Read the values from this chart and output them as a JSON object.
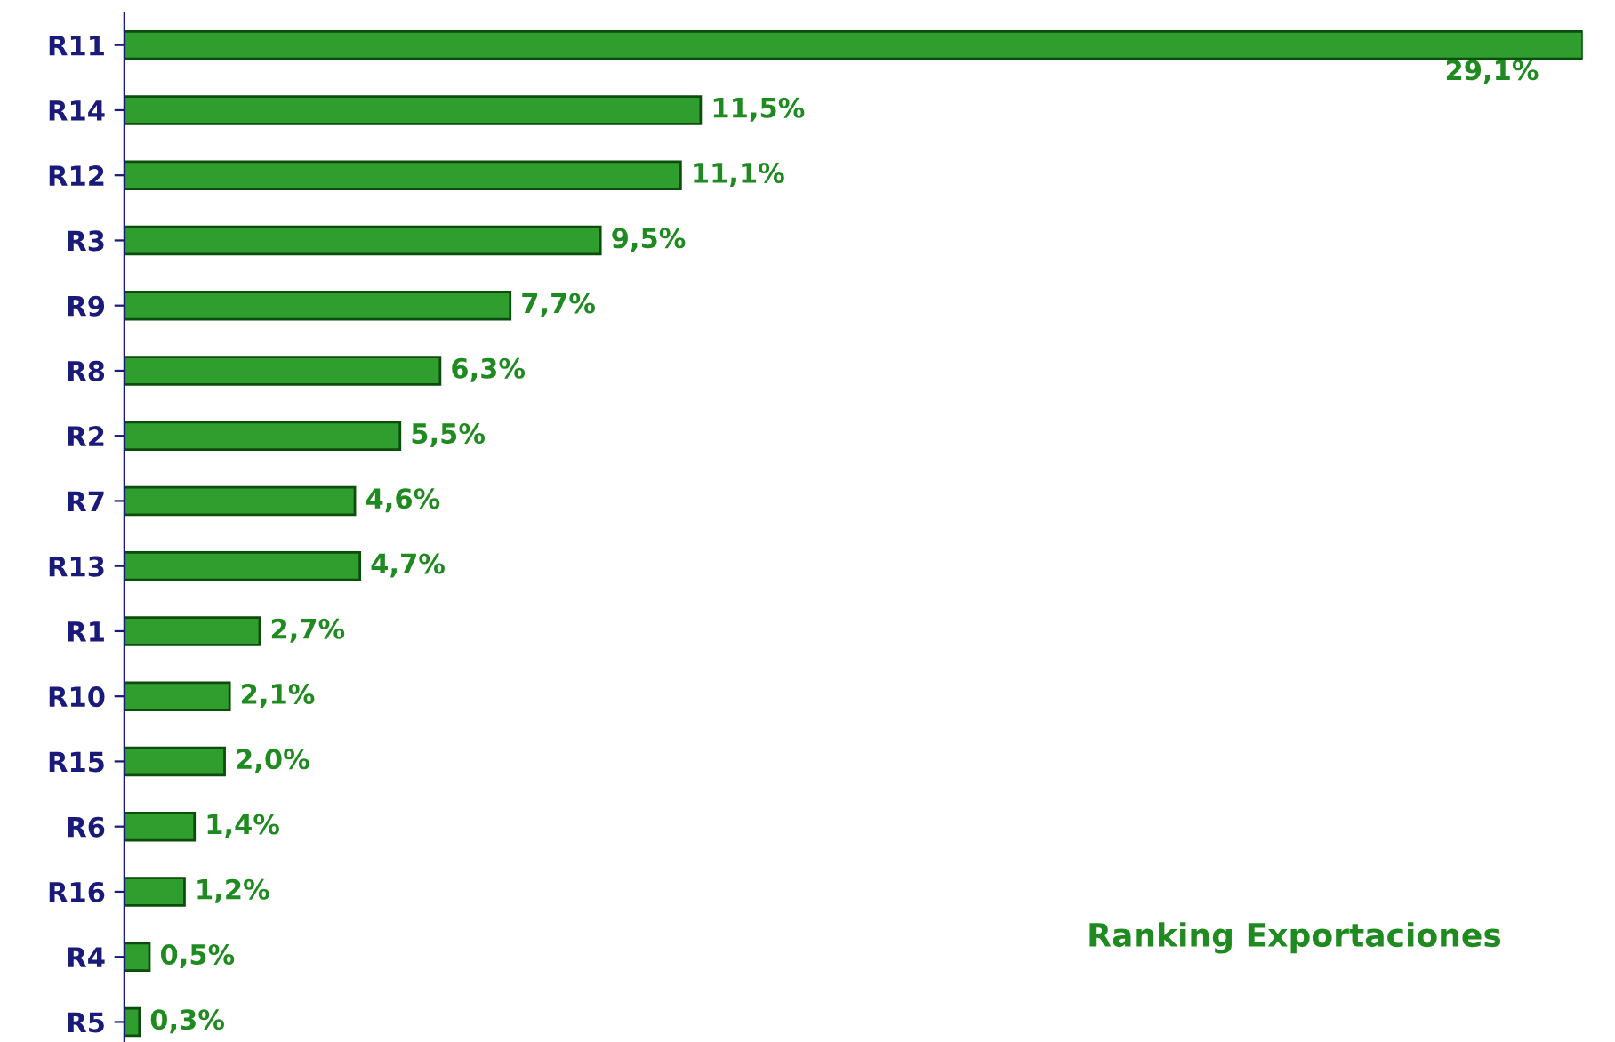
{
  "chart_data": {
    "type": "bar",
    "orientation": "horizontal",
    "title": "Ranking Exportaciones",
    "categories": [
      "R11",
      "R14",
      "R12",
      "R3",
      "R9",
      "R8",
      "R2",
      "R7",
      "R13",
      "R1",
      "R10",
      "R15",
      "R6",
      "R16",
      "R4",
      "R5"
    ],
    "values": [
      29.1,
      11.5,
      11.1,
      9.5,
      7.7,
      6.3,
      5.5,
      4.6,
      4.7,
      2.7,
      2.1,
      2.0,
      1.4,
      1.2,
      0.5,
      0.3
    ],
    "value_labels": [
      "29,1%",
      "11,5%",
      "11,1%",
      "9,5%",
      "7,7%",
      "6,3%",
      "5,5%",
      "4,6%",
      "4,7%",
      "2,7%",
      "2,1%",
      "2,0%",
      "1,4%",
      "1,2%",
      "0,5%",
      "0,3%"
    ],
    "color": "#2f9e2f",
    "grid": false,
    "legend": false
  }
}
